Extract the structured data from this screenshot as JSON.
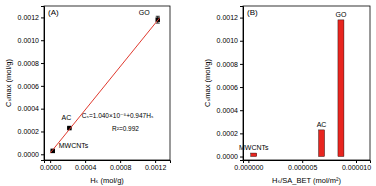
{
  "chart_data": [
    {
      "type": "scatter",
      "panel_label": "(A)",
      "x_label": "Hₛ (mol/g)",
      "y_label": "Cₛmax (mol/g)",
      "xlim": [
        -7e-05,
        0.00137
      ],
      "xticks": [
        {
          "value": 0,
          "label": "0.0000"
        },
        0.0004,
        0.0008,
        0.0012
      ],
      "ylim": [
        -5e-05,
        0.0013
      ],
      "yticks": [
        {
          "value": 0,
          "label": "0.0000"
        },
        0.0002,
        0.0004,
        0.0006,
        0.0008,
        {
          "value": 0.001,
          "label": "0.0010"
        },
        0.0012
      ],
      "series": [
        {
          "type": "scatter",
          "marker": "square",
          "color": "#000000",
          "x": [
            3e-05,
            0.00022,
            0.00123
          ],
          "values": [
            3e-05,
            0.00023,
            0.00118
          ],
          "error": [
            2e-06,
            5e-06,
            3e-05
          ],
          "labels": [
            "MWCNTs",
            "AC",
            "GO"
          ]
        },
        {
          "type": "line",
          "color": "#e03a2f",
          "x": [
            0.0,
            0.00125
          ],
          "values": [
            1.04e-05,
            0.0011942
          ]
        }
      ],
      "annotations": [
        "Cₛ=1.040×10⁻⁵+0.947Hₛ",
        "R²=0.992"
      ]
    },
    {
      "type": "bar",
      "panel_label": "(B)",
      "x_label": "Hₛ/SA_BET (mol/m²)",
      "y_label": "Cₛmax (mol/g)",
      "xlim": [
        -5e-07,
        1.13e-05
      ],
      "xticks": [
        {
          "value": 0,
          "label": "0.000000"
        },
        5e-06,
        {
          "value": 1e-05,
          "label": "0.000010"
        }
      ],
      "ylim": [
        -3e-05,
        0.0013
      ],
      "yticks": [
        {
          "value": 0,
          "label": "0.0000"
        },
        0.0002,
        0.0004,
        0.0006,
        0.0008,
        {
          "value": 0.001,
          "label": "0.0010"
        },
        0.0012
      ],
      "x": [
        5e-07,
        6.8e-06,
        8.6e-06
      ],
      "values": [
        3e-05,
        0.00023,
        0.00118
      ],
      "bar_labels": [
        "MWCNTs",
        "AC",
        "GO"
      ],
      "color": "#e8251f"
    }
  ]
}
